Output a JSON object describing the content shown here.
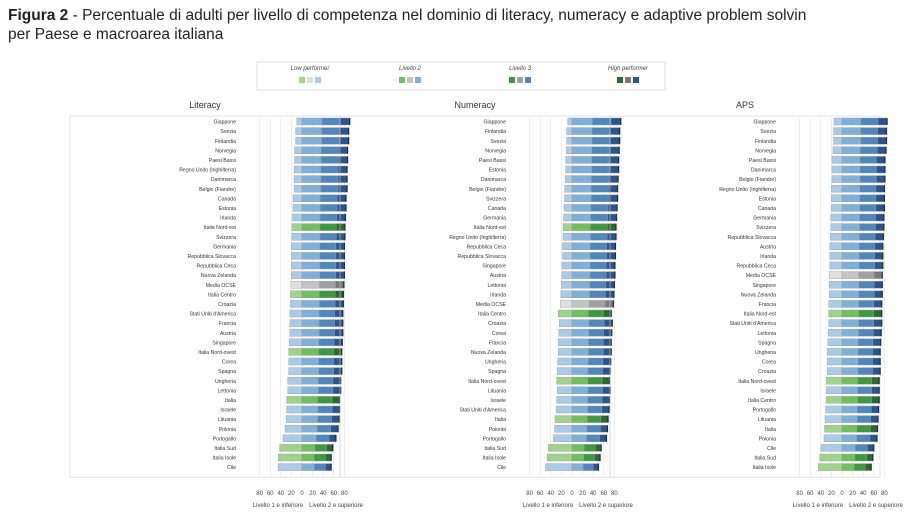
{
  "figure": {
    "label": "Figura 2",
    "title_rest": " - Percentuale di adulti per livello di competenza nel dominio di literacy, numeracy e adaptive problem solvin",
    "subtitle": "per Paese e macroarea italiana"
  },
  "colors": {
    "country": [
      "#a9cbe8",
      "#7fb0dc",
      "#4f86c0",
      "#2a5590"
    ],
    "italy": [
      "#9fd38a",
      "#6fbf5b",
      "#3e9a40",
      "#2a6b2e"
    ],
    "oecd": [
      "#e0e0e0",
      "#c4c4c4",
      "#a0a0a0",
      "#7a7a7a"
    ],
    "grid": "#dddddd",
    "border": "#9a9a9a"
  },
  "chart_data": {
    "type": "bar",
    "title": "",
    "legend": {
      "position": "top-center",
      "entries": [
        {
          "label": "Low performer"
        },
        {
          "label": "Livello 2"
        },
        {
          "label": "Livello 3"
        },
        {
          "label": "High performer"
        }
      ]
    },
    "x_ticks": [
      "80",
      "60",
      "40",
      "20",
      "0",
      "20",
      "40",
      "60",
      "80"
    ],
    "x_axis_labels": {
      "left": "Livello 1 e inferiore",
      "right": "Livello 2 e superiore"
    },
    "xlim": [
      -100,
      100
    ],
    "panels": [
      {
        "name": "Literacy",
        "categories": [
          "Giappone",
          "Svezia",
          "Finlandia",
          "Norvegia",
          "Paesi Bassi",
          "Regno Unito (Inghilterra)",
          "Danimarca",
          "Belgio (Fiandre)",
          "Canada",
          "Estonia",
          "Irlanda",
          "Italia Nord-est",
          "Svizzera",
          "Germania",
          "Repubblica Slovacca",
          "Repubblica Ceca",
          "Nuova Zelanda",
          "Media OCSE",
          "Italia Centro",
          "Croazia",
          "Stati Uniti d'America",
          "Francia",
          "Austria",
          "Singapore",
          "Italia Nord-ovest",
          "Corea",
          "Spagna",
          "Ungheria",
          "Lettonia",
          "Italia",
          "Israele",
          "Lituania",
          "Polonia",
          "Portogallo",
          "Italia Sud",
          "Italia Isole",
          "Cile"
        ],
        "low": [
          10,
          12,
          12,
          14,
          14,
          15,
          15,
          15,
          17,
          17,
          18,
          19,
          19,
          20,
          20,
          20,
          20,
          21,
          22,
          22,
          23,
          23,
          23,
          24,
          25,
          25,
          25,
          27,
          27,
          29,
          29,
          30,
          32,
          36,
          42,
          45,
          45
        ],
        "high": [
          90,
          88,
          88,
          86,
          86,
          85,
          85,
          85,
          83,
          83,
          82,
          81,
          81,
          80,
          80,
          80,
          80,
          79,
          78,
          78,
          77,
          77,
          77,
          76,
          75,
          75,
          75,
          73,
          73,
          71,
          71,
          70,
          68,
          64,
          58,
          55,
          55
        ]
      },
      {
        "name": "Numeracy",
        "categories": [
          "Giappone",
          "Finlandia",
          "Svezia",
          "Norvegia",
          "Paesi Bassi",
          "Estonia",
          "Danimarca",
          "Belgio (Fiandre)",
          "Svizzera",
          "Canada",
          "Germania",
          "Italia Nord-est",
          "Regno Unito (Inghilterra)",
          "Repubblica Ceca",
          "Repubblica Slovacca",
          "Singapore",
          "Austria",
          "Lettonia",
          "Irlanda",
          "Media OCSE",
          "Italia Centro",
          "Croazia",
          "Corea",
          "Francia",
          "Nuova Zelanda",
          "Ungheria",
          "Spagna",
          "Italia Nord-ovest",
          "Lituania",
          "Israele",
          "Stati Uniti d'America",
          "Italia",
          "Polonia",
          "Portogallo",
          "Italia Sud",
          "Italia Isole",
          "Cile"
        ],
        "low": [
          8,
          10,
          10,
          11,
          12,
          12,
          13,
          14,
          14,
          15,
          16,
          17,
          17,
          18,
          18,
          19,
          19,
          20,
          21,
          22,
          26,
          24,
          25,
          26,
          26,
          27,
          28,
          29,
          28,
          29,
          30,
          32,
          33,
          35,
          45,
          47,
          50
        ],
        "high": [
          92,
          90,
          90,
          89,
          88,
          88,
          87,
          86,
          86,
          85,
          84,
          83,
          83,
          82,
          82,
          81,
          81,
          80,
          79,
          78,
          74,
          76,
          75,
          74,
          74,
          73,
          72,
          71,
          72,
          71,
          70,
          68,
          67,
          65,
          55,
          53,
          50
        ]
      },
      {
        "name": "APS",
        "categories": [
          "Giappone",
          "Svezia",
          "Finlandia",
          "Norvegia",
          "Paesi Bassi",
          "Danimarca",
          "Belgio (Fiandre)",
          "Regno Unito (Inghilterra)",
          "Estonia",
          "Canada",
          "Germania",
          "Svizzera",
          "Repubblica Slovacca",
          "Austria",
          "Irlanda",
          "Repubblica Ceca",
          "Media OCSE",
          "Singapore",
          "Nuova Zelanda",
          "Francia",
          "Italia Nord-est",
          "Stati Uniti d'America",
          "Lettonia",
          "Spagna",
          "Ungheria",
          "Corea",
          "Croazia",
          "Italia Nord-ovest",
          "Israele",
          "Italia Centro",
          "Portogallo",
          "Lituania",
          "Italia",
          "Polonia",
          "Cile",
          "Italia Sud",
          "Italia Isole"
        ],
        "low": [
          15,
          16,
          16,
          17,
          19,
          19,
          19,
          20,
          20,
          20,
          21,
          21,
          22,
          23,
          23,
          23,
          24,
          24,
          24,
          25,
          25,
          25,
          26,
          27,
          28,
          28,
          28,
          30,
          30,
          30,
          31,
          32,
          33,
          34,
          40,
          42,
          45
        ],
        "high": [
          85,
          84,
          84,
          83,
          81,
          81,
          81,
          80,
          80,
          80,
          79,
          79,
          78,
          77,
          77,
          77,
          76,
          76,
          76,
          75,
          75,
          75,
          74,
          73,
          72,
          72,
          72,
          70,
          70,
          70,
          69,
          68,
          67,
          66,
          60,
          58,
          55
        ]
      }
    ]
  }
}
